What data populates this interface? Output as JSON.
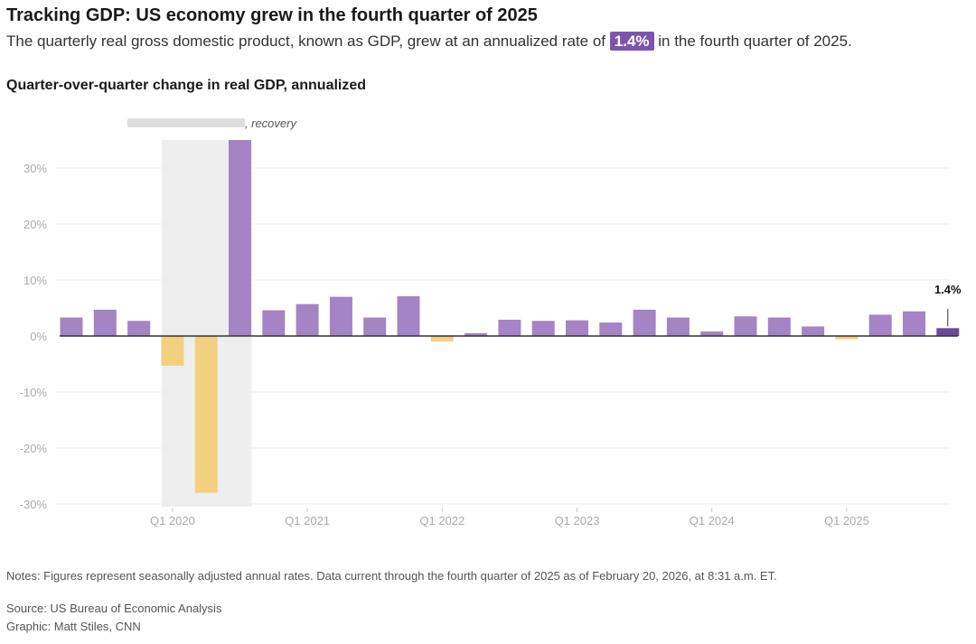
{
  "header": {
    "title": "Tracking GDP: US economy grew in the fourth quarter of 2025",
    "subtitle_before": "The quarterly real gross domestic product, known as GDP, grew at an annualized rate of ",
    "subtitle_highlight": "1.4%",
    "subtitle_after": " in the fourth quarter of 2025."
  },
  "chart_data": {
    "type": "bar",
    "title": "Quarter-over-quarter change in real GDP, annualized",
    "categories": [
      "Q2 2019",
      "Q3 2019",
      "Q4 2019",
      "Q1 2020",
      "Q2 2020",
      "Q3 2020",
      "Q4 2020",
      "Q1 2021",
      "Q2 2021",
      "Q3 2021",
      "Q4 2021",
      "Q1 2022",
      "Q2 2022",
      "Q3 2022",
      "Q4 2022",
      "Q1 2023",
      "Q2 2023",
      "Q3 2023",
      "Q4 2023",
      "Q1 2024",
      "Q2 2024",
      "Q3 2024",
      "Q4 2024",
      "Q1 2025",
      "Q2 2025",
      "Q3 2025",
      "Q4 2025"
    ],
    "values": [
      3.3,
      4.7,
      2.7,
      -5.3,
      -28.0,
      35.0,
      4.6,
      5.7,
      7.0,
      3.3,
      7.1,
      -1.0,
      0.5,
      2.9,
      2.7,
      2.8,
      2.4,
      4.7,
      3.3,
      0.8,
      3.5,
      3.3,
      1.7,
      -0.6,
      3.8,
      4.4,
      1.4
    ],
    "ylim": [
      -30,
      35
    ],
    "yticks": [
      30,
      20,
      10,
      0,
      -10,
      -20,
      -30
    ],
    "ytick_labels": [
      "30%",
      "20%",
      "10%",
      "0%",
      "-10%",
      "-20%",
      "-30%"
    ],
    "xticks": [
      "Q1 2020",
      "Q1 2021",
      "Q1 2022",
      "Q1 2023",
      "Q1 2024",
      "Q1 2025"
    ],
    "grid": true,
    "colors": {
      "positive": "#a484c4",
      "negative": "#f3cf80",
      "latest": "#6b4a9a",
      "shade": "#eeeeee",
      "zero": "#333333"
    },
    "shaded_range": [
      "Q1 2020",
      "Q3 2020"
    ],
    "shade_annotation": ", recovery",
    "latest_label": "1.4%"
  },
  "footer": {
    "notes": "Notes: Figures represent seasonally adjusted annual rates. Data current through the fourth quarter of 2025 as of February 20, 2026, at 8:31 a.m. ET.",
    "source": "Source: US Bureau of Economic Analysis",
    "credit": "Graphic: Matt Stiles, CNN"
  }
}
